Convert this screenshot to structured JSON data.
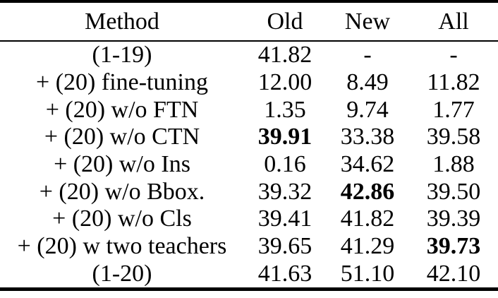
{
  "table": {
    "columns": {
      "method": "Method",
      "old": "Old",
      "new": "New",
      "all": "All"
    },
    "rows": [
      {
        "method": "(1-19)",
        "old": "41.82",
        "new": "-",
        "all": "-",
        "bold_columns": []
      },
      {
        "method": "+ (20) fine-tuning",
        "old": "12.00",
        "new": "8.49",
        "all": "11.82",
        "bold_columns": []
      },
      {
        "method": "+ (20) w/o FTN",
        "old": "1.35",
        "new": "9.74",
        "all": "1.77",
        "bold_columns": []
      },
      {
        "method": "+ (20) w/o CTN",
        "old": "39.91",
        "new": "33.38",
        "all": "39.58",
        "bold_columns": [
          "old"
        ]
      },
      {
        "method": "+ (20) w/o Ins",
        "old": "0.16",
        "new": "34.62",
        "all": "1.88",
        "bold_columns": []
      },
      {
        "method": "+ (20) w/o Bbox.",
        "old": "39.32",
        "new": "42.86",
        "all": "39.50",
        "bold_columns": [
          "new"
        ]
      },
      {
        "method": "+ (20) w/o Cls",
        "old": "39.41",
        "new": "41.82",
        "all": "39.39",
        "bold_columns": []
      },
      {
        "method": "+ (20) w two teachers",
        "old": "39.65",
        "new": "41.29",
        "all": "39.73",
        "bold_columns": [
          "all"
        ]
      },
      {
        "method": "(1-20)",
        "old": "41.63",
        "new": "51.10",
        "all": "42.10",
        "bold_columns": []
      }
    ]
  },
  "colors": {
    "text": "#000000",
    "background": "#ffffff",
    "rule": "#000000"
  }
}
